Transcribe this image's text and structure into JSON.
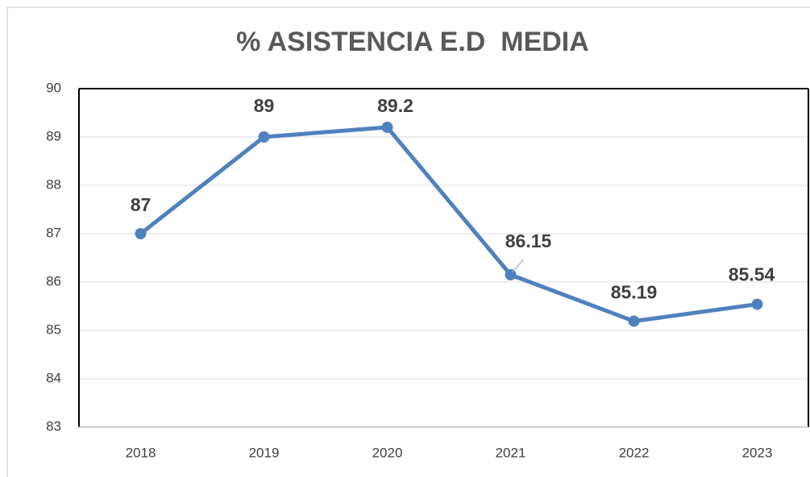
{
  "chart_data": {
    "type": "line",
    "title": "% ASISTENCIA E.D  MEDIA",
    "categories": [
      "2018",
      "2019",
      "2020",
      "2021",
      "2022",
      "2023"
    ],
    "values": [
      87,
      89,
      89.2,
      86.15,
      85.19,
      85.54
    ],
    "color": "#4f81bd",
    "ylim": [
      83,
      90
    ],
    "yticks": [
      83,
      84,
      85,
      86,
      87,
      88,
      89,
      90
    ],
    "grid": true
  }
}
